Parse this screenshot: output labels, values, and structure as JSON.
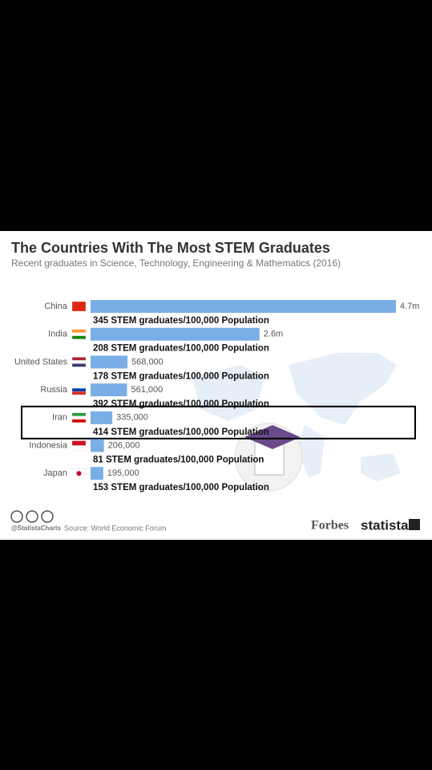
{
  "chart_data": {
    "type": "bar",
    "orientation": "horizontal",
    "title": "The Countries With The Most STEM Graduates",
    "subtitle": "Recent graduates in Science, Technology, Engineering & Mathematics (2016)",
    "categories": [
      "China",
      "India",
      "United States",
      "Russia",
      "Iran",
      "Indonesia",
      "Japan"
    ],
    "values": [
      4700000,
      2600000,
      568000,
      561000,
      335000,
      206000,
      195000
    ],
    "value_labels": [
      "4.7m",
      "2.6m",
      "568,000",
      "561,000",
      "335,000",
      "206,000",
      "195,000"
    ],
    "annotations": [
      "345 STEM graduates/100,000 Population",
      "208 STEM graduates/100,000 Population",
      "178 STEM graduates/100,000 Population",
      "392 STEM graduates/100,000 Population",
      "414 STEM graduates/100,000 Population",
      "81 STEM graduates/100,000 Population",
      "153 STEM graduates/100,000 Population"
    ],
    "color": "#7aaee6",
    "highlight": "Iran",
    "credit": "@StatistaCharts",
    "source": "Source: World Economic Forum",
    "logos": [
      "Forbes",
      "statista"
    ]
  }
}
